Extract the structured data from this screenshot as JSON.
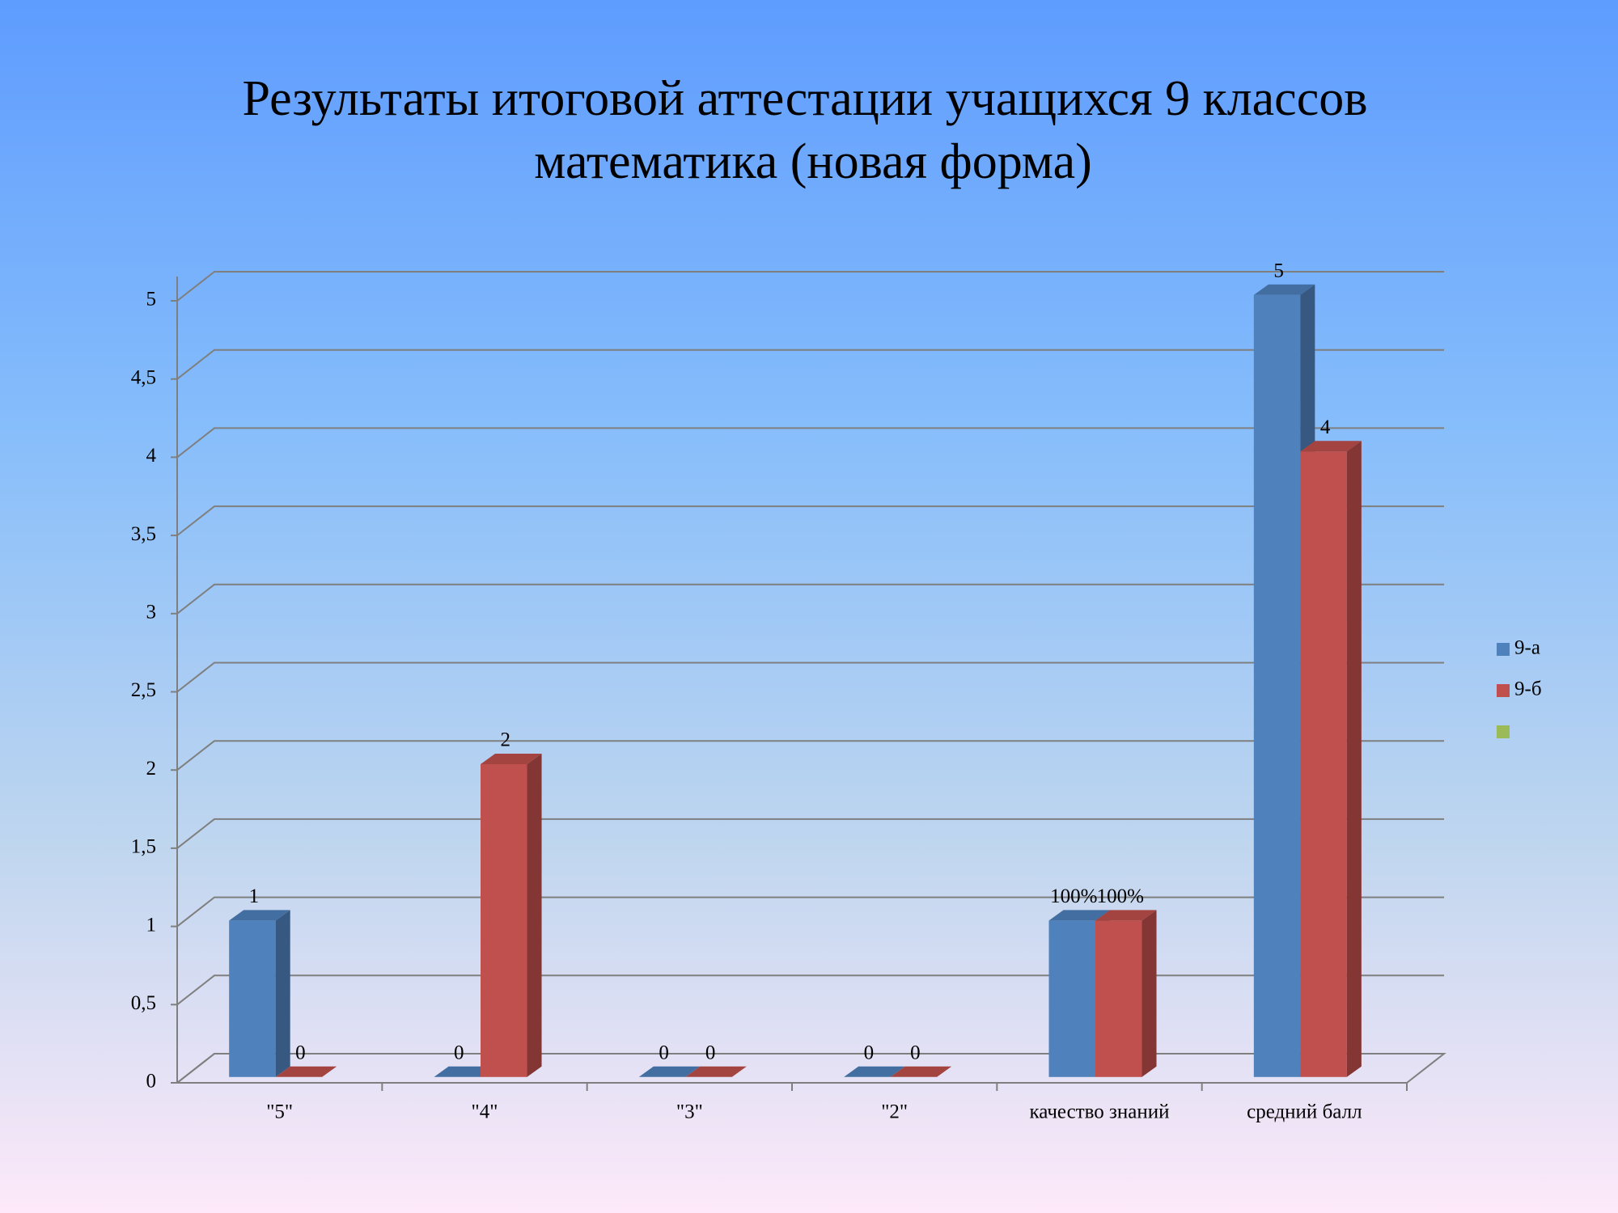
{
  "chart_data": {
    "type": "bar3d",
    "title": "Результаты итоговой аттестации учащихся 9 классов",
    "subtitle": "математика (новая форма)",
    "categories": [
      "\"5\"",
      "\"4\"",
      "\"3\"",
      "\"2\"",
      "качество знаний",
      "средний балл"
    ],
    "series": [
      {
        "name": "9-а",
        "color": "#4f81bd",
        "values": [
          1,
          0,
          0,
          0,
          1,
          5
        ],
        "value_labels": [
          "1",
          "0",
          "0",
          "0",
          "100%",
          "5"
        ]
      },
      {
        "name": "9-б",
        "color": "#c0504d",
        "values": [
          0,
          2,
          0,
          0,
          1,
          4
        ],
        "value_labels": [
          "0",
          "2",
          "0",
          "0",
          "100%",
          "4"
        ]
      },
      {
        "color": "#9bbb59",
        "values": [
          null,
          null,
          null,
          null,
          null,
          null
        ]
      }
    ],
    "ylim": [
      0,
      5
    ],
    "yticks": [
      0,
      {
        "value": 0.5,
        "label": "0,5"
      },
      1,
      {
        "value": 1.5,
        "label": "1,5"
      },
      2,
      {
        "value": 2.5,
        "label": "2,5"
      },
      3,
      {
        "value": 3.5,
        "label": "3,5"
      },
      4,
      {
        "value": 4.5,
        "label": "4,5"
      },
      5
    ],
    "grid": true,
    "legend": "right"
  }
}
